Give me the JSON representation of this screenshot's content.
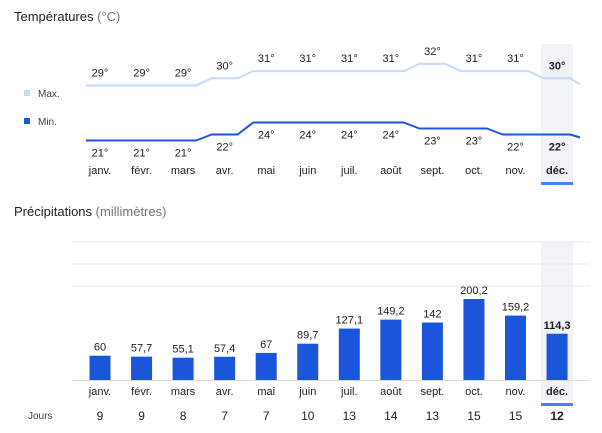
{
  "temperature_section": {
    "title": "Températures",
    "unit": "(°C)",
    "legend_max": "Max.",
    "legend_min": "Min."
  },
  "precipitation_section": {
    "title": "Précipitations",
    "unit": "(millimètres)",
    "days_label": "Jours"
  },
  "selected_index": 11,
  "colors": {
    "max_line": "#c6dafc",
    "min_line": "#1a56db",
    "bar": "#1a56db",
    "highlight": "#f1f3f4",
    "underline": "#4285f4"
  },
  "chart_data": [
    {
      "type": "line",
      "title": "Températures",
      "categories": [
        "janv.",
        "févr.",
        "mars",
        "avr.",
        "mai",
        "juin",
        "juil.",
        "août",
        "sept.",
        "oct.",
        "nov.",
        "déc."
      ],
      "series": [
        {
          "name": "Max.",
          "values": [
            29,
            29,
            29,
            30,
            31,
            31,
            31,
            31,
            32,
            31,
            31,
            30
          ],
          "labels": [
            "29°",
            "29°",
            "29°",
            "30°",
            "31°",
            "31°",
            "31°",
            "31°",
            "32°",
            "31°",
            "31°",
            "30°"
          ]
        },
        {
          "name": "Min.",
          "values": [
            21,
            21,
            21,
            22,
            24,
            24,
            24,
            24,
            23,
            23,
            22,
            22
          ],
          "labels": [
            "21°",
            "21°",
            "21°",
            "22°",
            "24°",
            "24°",
            "24°",
            "24°",
            "23°",
            "23°",
            "22°",
            "22°"
          ]
        }
      ]
    },
    {
      "type": "bar",
      "title": "Précipitations",
      "categories": [
        "janv.",
        "févr.",
        "mars",
        "avr.",
        "mai",
        "juin",
        "juil.",
        "août",
        "sept.",
        "oct.",
        "nov.",
        "déc."
      ],
      "values": [
        60,
        57.7,
        55.1,
        57.4,
        67,
        89.7,
        127.1,
        149.2,
        142,
        200.2,
        159.2,
        114.3
      ],
      "labels": [
        "60",
        "57,7",
        "55,1",
        "57,4",
        "67",
        "89,7",
        "127,1",
        "149,2",
        "142",
        "200,2",
        "159,2",
        "114,3"
      ],
      "days": [
        "9",
        "9",
        "8",
        "7",
        "7",
        "10",
        "13",
        "14",
        "13",
        "15",
        "15",
        "12"
      ]
    }
  ]
}
